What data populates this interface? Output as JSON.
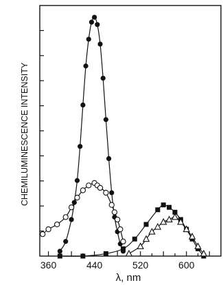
{
  "chart_data": {
    "type": "line",
    "title": "",
    "xlabel": "λ, nm",
    "ylabel": "CHEMILUMINESCENCE  INTENSITY",
    "xlim": [
      345,
      660
    ],
    "ylim": [
      0,
      100
    ],
    "xticks": [
      360,
      440,
      520,
      600
    ],
    "grid": false,
    "legend": "none",
    "colors": {
      "line": "#111111",
      "background": "#ffffff"
    },
    "series": [
      {
        "marker": "filled-circle",
        "x": [
          380,
          390,
          400,
          405,
          410,
          415,
          420,
          425,
          430,
          435,
          440,
          445,
          450,
          455,
          460,
          465,
          470,
          475,
          480,
          485,
          490
        ],
        "y": [
          2,
          6,
          15,
          22,
          31,
          45,
          62,
          78,
          89,
          96,
          98,
          95,
          87,
          73,
          56,
          40,
          26,
          16,
          10,
          5,
          2
        ]
      },
      {
        "marker": "open-circle",
        "x": [
          350,
          360,
          375,
          390,
          400,
          410,
          420,
          430,
          440,
          445,
          450,
          460,
          470,
          475,
          480,
          485,
          490
        ],
        "y": [
          9,
          11,
          13,
          16,
          20,
          24,
          27,
          29,
          30,
          29,
          28,
          26,
          21,
          18,
          15,
          11,
          6
        ]
      },
      {
        "marker": "filled-square",
        "x": [
          380,
          420,
          460,
          490,
          510,
          530,
          550,
          560,
          570,
          580,
          590,
          600,
          610,
          620,
          630
        ],
        "y": [
          0,
          0,
          1,
          3,
          7,
          13,
          19,
          21,
          20,
          18,
          15,
          11,
          7,
          3,
          0
        ]
      },
      {
        "marker": "open-triangle",
        "x": [
          500,
          520,
          530,
          540,
          550,
          560,
          570,
          580,
          590,
          600,
          610,
          620,
          630
        ],
        "y": [
          1,
          4,
          7,
          10,
          12,
          14,
          15,
          16,
          14,
          11,
          8,
          4,
          1
        ]
      }
    ]
  }
}
